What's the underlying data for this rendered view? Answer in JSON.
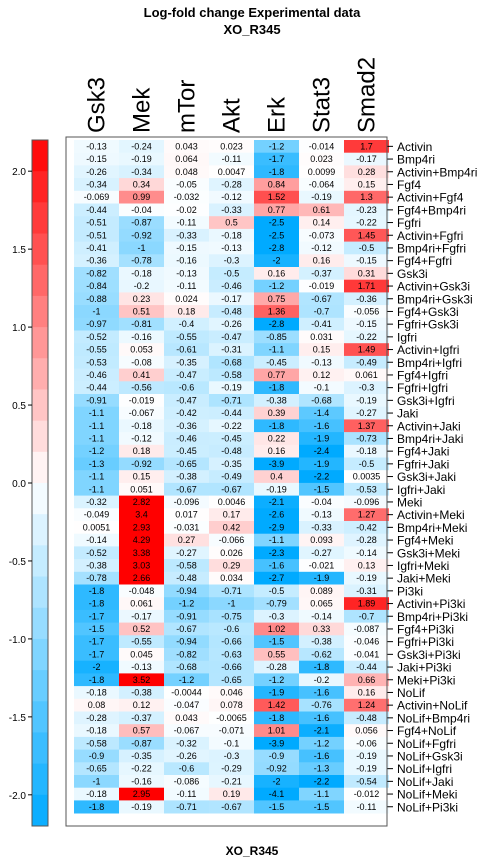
{
  "chart_data": {
    "type": "heatmap",
    "title": "Log-fold change Experimental data",
    "subtitle": "XO_R345",
    "xlabel": "XO_R345",
    "columns": [
      "Gsk3",
      "Mek",
      "mTor",
      "Akt",
      "Erk",
      "Stat3",
      "Smad2"
    ],
    "colorbar": {
      "ticks": [
        "2.0",
        "1.5",
        "1.0",
        "0.5",
        "0.0",
        "-0.5",
        "-1.0",
        "-1.5",
        "-2.0"
      ],
      "tick_values": [
        2.0,
        1.5,
        1.0,
        0.5,
        0.0,
        -0.5,
        -1.0,
        -1.5,
        -2.0
      ],
      "range": [
        -2.2,
        2.2
      ]
    },
    "colors": {
      "positive": "#ff0000",
      "negative": "#00aaff",
      "zero": "#ffffff"
    },
    "rows": [
      {
        "label": "Activin",
        "values": [
          "-0.13",
          "-0.24",
          "0.043",
          "0.023",
          "-1.2",
          "-0.014",
          "1.7"
        ]
      },
      {
        "label": "Bmp4ri",
        "values": [
          "-0.15",
          "-0.19",
          "0.064",
          "-0.11",
          "-1.7",
          "0.023",
          "-0.17"
        ]
      },
      {
        "label": "Activin+Bmp4ri",
        "values": [
          "-0.26",
          "-0.34",
          "0.048",
          "0.0047",
          "-1.8",
          "0.0099",
          "0.28"
        ]
      },
      {
        "label": "Fgf4",
        "values": [
          "-0.34",
          "0.34",
          "-0.05",
          "-0.28",
          "0.84",
          "-0.064",
          "0.15"
        ]
      },
      {
        "label": "Activin+Fgf4",
        "values": [
          "-0.069",
          "0.99",
          "-0.032",
          "-0.12",
          "1.52",
          "-0.19",
          "1.3"
        ]
      },
      {
        "label": "Fgf4+Bmp4ri",
        "values": [
          "-0.44",
          "-0.04",
          "-0.02",
          "-0.33",
          "0.77",
          "0.61",
          "-0.23"
        ]
      },
      {
        "label": "Fgfri",
        "values": [
          "-0.51",
          "-0.87",
          "-0.11",
          "0.5",
          "-2.5",
          "0.14",
          "-0.22"
        ]
      },
      {
        "label": "Activin+Fgfri",
        "values": [
          "-0.51",
          "-0.92",
          "-0.33",
          "-0.18",
          "-2.5",
          "-0.073",
          "1.45"
        ]
      },
      {
        "label": "Bmp4ri+Fgfri",
        "values": [
          "-0.41",
          "-1",
          "-0.15",
          "-0.13",
          "-2.8",
          "-0.12",
          "-0.5"
        ]
      },
      {
        "label": "Fgf4+Fgfri",
        "values": [
          "-0.36",
          "-0.78",
          "-0.16",
          "-0.3",
          "-2",
          "0.16",
          "-0.15"
        ]
      },
      {
        "label": "Gsk3i",
        "values": [
          "-0.82",
          "-0.18",
          "-0.13",
          "-0.5",
          "0.16",
          "-0.37",
          "0.31"
        ]
      },
      {
        "label": "Activin+Gsk3i",
        "values": [
          "-0.84",
          "-0.2",
          "-0.11",
          "-0.46",
          "-1.2",
          "-0.019",
          "1.71"
        ]
      },
      {
        "label": "Bmp4ri+Gsk3i",
        "values": [
          "-0.88",
          "0.23",
          "0.024",
          "-0.17",
          "0.75",
          "-0.67",
          "-0.36"
        ]
      },
      {
        "label": "Fgf4+Gsk3i",
        "values": [
          "-1",
          "0.51",
          "0.18",
          "-0.48",
          "1.36",
          "-0.7",
          "-0.056"
        ]
      },
      {
        "label": "Fgfri+Gsk3i",
        "values": [
          "-0.97",
          "-0.81",
          "-0.4",
          "-0.26",
          "-2.8",
          "-0.41",
          "-0.15"
        ]
      },
      {
        "label": "Igfri",
        "values": [
          "-0.52",
          "-0.16",
          "-0.55",
          "-0.47",
          "-0.85",
          "0.031",
          "-0.22"
        ]
      },
      {
        "label": "Activin+Igfri",
        "values": [
          "-0.55",
          "0.053",
          "-0.61",
          "-0.31",
          "-1.1",
          "0.15",
          "1.49"
        ]
      },
      {
        "label": "Bmp4ri+Igfri",
        "values": [
          "-0.53",
          "-0.08",
          "-0.35",
          "-0.68",
          "-0.45",
          "-0.13",
          "-0.49"
        ]
      },
      {
        "label": "Fgf4+Igfri",
        "values": [
          "-0.46",
          "0.41",
          "-0.47",
          "-0.58",
          "0.77",
          "0.12",
          "0.061"
        ]
      },
      {
        "label": "Fgfri+Igfri",
        "values": [
          "-0.44",
          "-0.56",
          "-0.6",
          "-0.19",
          "-1.8",
          "-0.1",
          "-0.3"
        ]
      },
      {
        "label": "Gsk3i+Igfri",
        "values": [
          "-0.91",
          "-0.019",
          "-0.47",
          "-0.71",
          "-0.38",
          "-0.68",
          "-0.19"
        ]
      },
      {
        "label": "Jaki",
        "values": [
          "-1.1",
          "-0.067",
          "-0.42",
          "-0.44",
          "0.39",
          "-1.4",
          "-0.27"
        ]
      },
      {
        "label": "Activin+Jaki",
        "values": [
          "-1.1",
          "-0.18",
          "-0.36",
          "-0.22",
          "-1.8",
          "-1.6",
          "1.37"
        ]
      },
      {
        "label": "Bmp4ri+Jaki",
        "values": [
          "-1.1",
          "-0.12",
          "-0.46",
          "-0.45",
          "0.22",
          "-1.9",
          "-0.73"
        ]
      },
      {
        "label": "Fgf4+Jaki",
        "values": [
          "-1.2",
          "0.18",
          "-0.45",
          "-0.48",
          "0.16",
          "-2.4",
          "-0.18"
        ]
      },
      {
        "label": "Fgfri+Jaki",
        "values": [
          "-1.3",
          "-0.92",
          "-0.65",
          "-0.35",
          "-3.9",
          "-1.9",
          "-0.5"
        ]
      },
      {
        "label": "Gsk3i+Jaki",
        "values": [
          "-1.1",
          "0.15",
          "-0.38",
          "-0.49",
          "0.4",
          "-2.2",
          "0.0035"
        ]
      },
      {
        "label": "Igfri+Jaki",
        "values": [
          "-1.1",
          "0.051",
          "-0.67",
          "-0.67",
          "-0.19",
          "-1.5",
          "-0.53"
        ]
      },
      {
        "label": "Meki",
        "values": [
          "-0.32",
          "2.82",
          "-0.096",
          "0.0046",
          "-2.1",
          "-0.04",
          "-0.096"
        ]
      },
      {
        "label": "Activin+Meki",
        "values": [
          "-0.049",
          "3.4",
          "0.017",
          "0.17",
          "-2.6",
          "-0.13",
          "1.27"
        ]
      },
      {
        "label": "Bmp4ri+Meki",
        "values": [
          "0.0051",
          "2.93",
          "-0.031",
          "0.42",
          "-2.9",
          "-0.33",
          "-0.42"
        ]
      },
      {
        "label": "Fgf4+Meki",
        "values": [
          "-0.14",
          "4.29",
          "0.27",
          "-0.066",
          "-1.1",
          "0.093",
          "-0.28"
        ]
      },
      {
        "label": "Gsk3i+Meki",
        "values": [
          "-0.52",
          "3.38",
          "-0.27",
          "0.026",
          "-2.3",
          "-0.27",
          "-0.14"
        ]
      },
      {
        "label": "Igfri+Meki",
        "values": [
          "-0.38",
          "3.03",
          "-0.58",
          "0.29",
          "-1.6",
          "-0.021",
          "0.13"
        ]
      },
      {
        "label": "Jaki+Meki",
        "values": [
          "-0.78",
          "2.66",
          "-0.48",
          "0.034",
          "-2.7",
          "-1.9",
          "-0.19"
        ]
      },
      {
        "label": "Pi3ki",
        "values": [
          "-1.8",
          "-0.048",
          "-0.94",
          "-0.71",
          "-0.5",
          "0.089",
          "-0.31"
        ]
      },
      {
        "label": "Activin+Pi3ki",
        "values": [
          "-1.8",
          "0.061",
          "-1.2",
          "-1",
          "-0.79",
          "0.065",
          "1.89"
        ]
      },
      {
        "label": "Bmp4ri+Pi3ki",
        "values": [
          "-1.7",
          "-0.17",
          "-0.91",
          "-0.75",
          "-0.3",
          "-0.14",
          "-0.7"
        ]
      },
      {
        "label": "Fgf4+Pi3ki",
        "values": [
          "-1.5",
          "0.52",
          "-0.67",
          "-0.6",
          "1.02",
          "0.33",
          "-0.087"
        ]
      },
      {
        "label": "Fgfri+Pi3ki",
        "values": [
          "-1.7",
          "-0.55",
          "-0.94",
          "-0.66",
          "-1.5",
          "-0.38",
          "-0.046"
        ]
      },
      {
        "label": "Gsk3i+Pi3ki",
        "values": [
          "-1.7",
          "0.045",
          "-0.82",
          "-0.63",
          "0.55",
          "-0.62",
          "-0.041"
        ]
      },
      {
        "label": "Jaki+Pi3ki",
        "values": [
          "-2",
          "-0.13",
          "-0.68",
          "-0.66",
          "-0.28",
          "-1.8",
          "-0.44"
        ]
      },
      {
        "label": "Meki+Pi3ki",
        "values": [
          "-1.8",
          "3.52",
          "-1.2",
          "-0.65",
          "-1.2",
          "-0.2",
          "0.66"
        ]
      },
      {
        "label": "NoLif",
        "values": [
          "-0.18",
          "-0.38",
          "-0.0044",
          "0.046",
          "-1.9",
          "-1.6",
          "0.16"
        ]
      },
      {
        "label": "Activin+NoLif",
        "values": [
          "0.08",
          "0.12",
          "-0.047",
          "0.078",
          "1.42",
          "-0.76",
          "1.24"
        ]
      },
      {
        "label": "NoLif+Bmp4ri",
        "values": [
          "-0.28",
          "-0.37",
          "0.043",
          "-0.0065",
          "-1.8",
          "-1.6",
          "-0.48"
        ]
      },
      {
        "label": "Fgf4+NoLif",
        "values": [
          "-0.18",
          "0.57",
          "-0.067",
          "-0.071",
          "1.01",
          "-2.1",
          "0.056"
        ]
      },
      {
        "label": "NoLif+Fgfri",
        "values": [
          "-0.58",
          "-0.87",
          "-0.32",
          "-0.1",
          "-3.9",
          "-1.2",
          "-0.06"
        ]
      },
      {
        "label": "NoLif+Gsk3i",
        "values": [
          "-0.9",
          "-0.35",
          "-0.26",
          "-0.3",
          "-0.9",
          "-1.6",
          "-0.19"
        ]
      },
      {
        "label": "NoLif+Igfri",
        "values": [
          "-0.65",
          "-0.22",
          "-0.6",
          "-0.29",
          "-0.92",
          "-1.3",
          "-0.19"
        ]
      },
      {
        "label": "NoLif+Jaki",
        "values": [
          "-1",
          "-0.16",
          "-0.086",
          "-0.21",
          "-2",
          "-2.2",
          "-0.54"
        ]
      },
      {
        "label": "NoLif+Meki",
        "values": [
          "-0.18",
          "2.95",
          "-0.11",
          "0.19",
          "-4.1",
          "-1.1",
          "-0.012"
        ]
      },
      {
        "label": "NoLif+Pi3ki",
        "values": [
          "-1.8",
          "-0.19",
          "-0.71",
          "-0.67",
          "-1.5",
          "-1.5",
          "-0.11"
        ]
      }
    ]
  }
}
